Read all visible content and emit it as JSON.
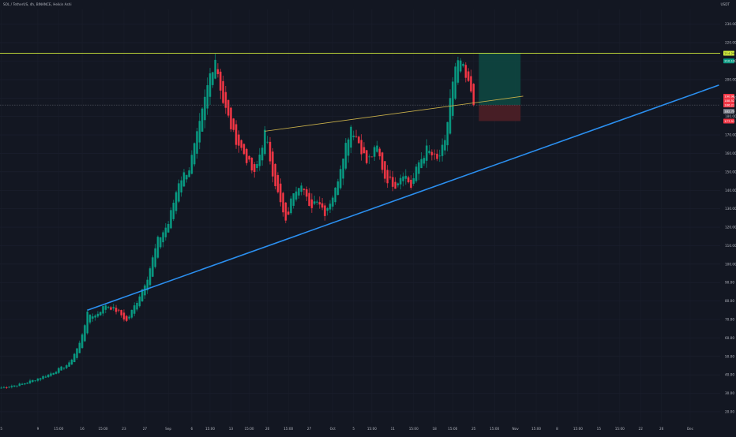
{
  "header": {
    "symbol_title": "SOL / TetherUS, 4h, BINANCE, Heikin Ashi",
    "currency": "USDT"
  },
  "chart_data": {
    "type": "candlestick",
    "style": "heikin-ashi",
    "ylim": [
      14,
      238
    ],
    "y_ticks": [
      20,
      30,
      40,
      50,
      60,
      70,
      80,
      90,
      100,
      110,
      120,
      130,
      140,
      150,
      160,
      170,
      180,
      190,
      200,
      210,
      220,
      230
    ],
    "x_ticks": [
      "5",
      "9",
      "15:00",
      "16",
      "15:00",
      "23",
      "27",
      "Sep",
      "6",
      "15:00",
      "13",
      "15:00",
      "20",
      "15:00",
      "27",
      "Oct",
      "5",
      "15:00",
      "11",
      "15:00",
      "18",
      "15:00",
      "25",
      "15:00",
      "Nov",
      "15:00",
      "8",
      "15:00",
      "15",
      "15:00",
      "22",
      "26",
      "Dec"
    ],
    "x_tick_bars": [
      0,
      14,
      22,
      31,
      39,
      47,
      55,
      64,
      73,
      80,
      88,
      95,
      102,
      110,
      118,
      127,
      135,
      142,
      150,
      158,
      166,
      173,
      181,
      189,
      197,
      205,
      213,
      221,
      229,
      237,
      245,
      253,
      264
    ],
    "n_bars": 276,
    "last_bar_index": 181,
    "price_anchors": [
      [
        0,
        33
      ],
      [
        8,
        35
      ],
      [
        18,
        40
      ],
      [
        26,
        46
      ],
      [
        30,
        57
      ],
      [
        33,
        73
      ],
      [
        36,
        72
      ],
      [
        40,
        78
      ],
      [
        45,
        74
      ],
      [
        48,
        69
      ],
      [
        52,
        80
      ],
      [
        56,
        93
      ],
      [
        60,
        113
      ],
      [
        64,
        122
      ],
      [
        68,
        145
      ],
      [
        72,
        152
      ],
      [
        76,
        175
      ],
      [
        80,
        203
      ],
      [
        82,
        212
      ],
      [
        85,
        188
      ],
      [
        89,
        170
      ],
      [
        93,
        160
      ],
      [
        97,
        148
      ],
      [
        101,
        171
      ],
      [
        104,
        150
      ],
      [
        106,
        138
      ],
      [
        109,
        122
      ],
      [
        112,
        140
      ],
      [
        115,
        145
      ],
      [
        118,
        130
      ],
      [
        121,
        136
      ],
      [
        124,
        128
      ],
      [
        128,
        140
      ],
      [
        131,
        160
      ],
      [
        134,
        175
      ],
      [
        137,
        166
      ],
      [
        140,
        155
      ],
      [
        144,
        163
      ],
      [
        147,
        147
      ],
      [
        151,
        143
      ],
      [
        154,
        150
      ],
      [
        157,
        142
      ],
      [
        160,
        155
      ],
      [
        163,
        162
      ],
      [
        167,
        156
      ],
      [
        170,
        165
      ],
      [
        172,
        190
      ],
      [
        174,
        205
      ],
      [
        176,
        210
      ],
      [
        178,
        200
      ],
      [
        180,
        194
      ],
      [
        181,
        186
      ]
    ],
    "current_price": 186.21,
    "price_labels": [
      {
        "value": 214.29,
        "color": "#d4f03c",
        "text_color": "#131722"
      },
      {
        "value": 210.12,
        "color": "#089981",
        "text_color": "#ffffff"
      },
      {
        "value": 190.98,
        "color": "#f23645",
        "text_color": "#ffffff"
      },
      {
        "value": 188.52,
        "color": "#f23645",
        "text_color": "#ffffff"
      },
      {
        "value": 186.21,
        "color": "#f23645",
        "text_color": "#ffffff"
      },
      {
        "value": 182.79,
        "color": "#787b86",
        "text_color": "#ffffff"
      },
      {
        "value": 177.51,
        "color": "#f23645",
        "text_color": "#ffffff"
      }
    ],
    "drawings": {
      "horizontal_line": {
        "price": 214.29,
        "color": "#d4f03c"
      },
      "uptrend_line": {
        "from": [
          33,
          75
        ],
        "to": [
          275,
          197
        ],
        "color": "#2b8fef"
      },
      "triangle_top_line": {
        "from": [
          101,
          172
        ],
        "to": [
          200,
          191
        ],
        "color": "#c9b04a"
      },
      "long_position": {
        "bar_start": 183,
        "bar_end": 199,
        "entry": 186.21,
        "target": 214.29,
        "stop": 177.51,
        "profit_color": "#0e4640",
        "loss_color": "#4a1f26"
      }
    },
    "colors": {
      "up": "#089981",
      "down": "#f23645",
      "background": "#131722",
      "axis_text": "#b2b5be"
    }
  }
}
